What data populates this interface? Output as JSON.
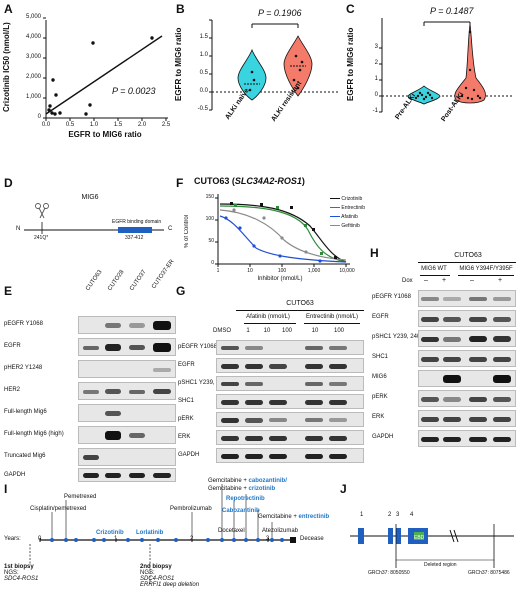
{
  "panels": {
    "A": "A",
    "B": "B",
    "C": "C",
    "D": "D",
    "E": "E",
    "F": "F",
    "G": "G",
    "H": "H",
    "I": "I",
    "J": "J"
  },
  "panelA": {
    "ylabel": "Crizotinib IC50 (nmol/L)",
    "xlabel": "EGFR to MIG6 ratio",
    "yticks": [
      "0",
      "1,000",
      "2,000",
      "3,000",
      "4,000",
      "5,000"
    ],
    "xticks": [
      "0.0",
      "0.5",
      "1.0",
      "1.5",
      "2.0",
      "2.5"
    ],
    "pvalue": "P = 0.0023"
  },
  "panelB": {
    "ylabel": "EGFR to MIG6 ratio",
    "yticks": [
      "-0.5",
      "0.0",
      "0.5",
      "1.0",
      "1.5"
    ],
    "groups": [
      "ALKi naïve",
      "ALKi resistant"
    ],
    "pvalue": "P = 0.1906"
  },
  "panelC": {
    "ylabel": "EGFR to MIG6 ratio",
    "yticks": [
      "-1",
      "0",
      "1",
      "2",
      "3"
    ],
    "groups": [
      "Pre-ALKi",
      "Post-ALKi"
    ],
    "pvalue": "P = 0.1487"
  },
  "panelD": {
    "title": "MIG6",
    "n_term": "N",
    "c_term": "C",
    "domain_label": "EGFR binding domain",
    "domain_range": "337-412",
    "mutation": "241Q*"
  },
  "panelE": {
    "cell_lines": [
      "CUTO63",
      "CUTO28",
      "CUTO37",
      "CUTO37-ER"
    ],
    "rows": [
      "pEGFR Y1068",
      "EGFR",
      "pHER2 Y1248",
      "HER2",
      "Full-length Mig6",
      "Full-length Mig6 (high)",
      "Truncated Mig6",
      "GAPDH"
    ]
  },
  "panelF": {
    "title": "CUTO63 (SLC34A2-ROS1)",
    "ylabel": "% of Control",
    "xlabel": "Inhibitor (nmol/L)",
    "yticks": [
      "0",
      "50",
      "100",
      "150"
    ],
    "xticks": [
      "1",
      "10",
      "100",
      "1,000",
      "10,000"
    ],
    "legend": [
      "Crizotinib",
      "Entrectinib",
      "Afatinib",
      "Gefitinib"
    ],
    "colors": [
      "#111111",
      "#2e8b3a",
      "#1f4fd6",
      "#8a8a8a"
    ]
  },
  "panelG": {
    "cell_line": "CUTO63",
    "group1": "Afatinib (nmol/L)",
    "group2": "Entrectinib (nmol/L)",
    "lanes": [
      "DMSO",
      "1",
      "10",
      "100",
      "10",
      "100"
    ],
    "rows": [
      "pEGFR Y1068",
      "EGFR",
      "pSHC1 Y239, 240",
      "SHC1",
      "pERK",
      "ERK",
      "GAPDH"
    ]
  },
  "panelH": {
    "cell_line": "CUTO63",
    "group1": "MIG6 WT",
    "group2": "MIG6 Y394F/Y395F",
    "dox_label": "Dox",
    "dox": [
      "–",
      "+",
      "–",
      "+"
    ],
    "rows": [
      "pEGFR Y1068",
      "EGFR",
      "pSHC1 Y239, 240",
      "SHC1",
      "MIG6",
      "pERK",
      "ERK",
      "GAPDH"
    ]
  },
  "panelI": {
    "years_label": "Years:",
    "years": [
      "0",
      "1",
      "2",
      "3"
    ],
    "events": {
      "cisplatin": "Cisplatin/pemetrexed",
      "pemetrexed": "Pemetrexed",
      "crizotinib": "Crizotinib",
      "lorlatinib": "Lorlatinib",
      "pembrolizumab": "Pembrolizumab",
      "docetaxel": "Docetaxel",
      "cabozantinib": "Cabozantinib",
      "repotrectinib": "Repotrectinib",
      "gem_cabo_1": "Gemcitabine + ",
      "gem_cabo_2": "cabozantinib/",
      "gem_criz_1": "Gemcitabine + ",
      "gem_criz_2": "crizotinib",
      "gem_entrec_1": "Gemcitabine + ",
      "gem_entrec_2": "entrectinib",
      "atezolizumab": "Atezolizumab",
      "decease": "Decease"
    },
    "biopsy1": {
      "title": "1st biopsy",
      "ngs": "NGS:",
      "result": "SDC4-ROS1"
    },
    "biopsy2": {
      "title": "2nd biopsy",
      "ngs": "NGS:",
      "result1": "SDC4-ROS1",
      "result2": "ERRFI1 deep deletion"
    }
  },
  "panelJ": {
    "exons": [
      "1",
      "2",
      "3",
      "4"
    ],
    "box_label": "EBD",
    "left_coord": "GRCh37: 8050550",
    "deleted": "Deleted region",
    "right_coord": "GRCh37: 8075486"
  }
}
